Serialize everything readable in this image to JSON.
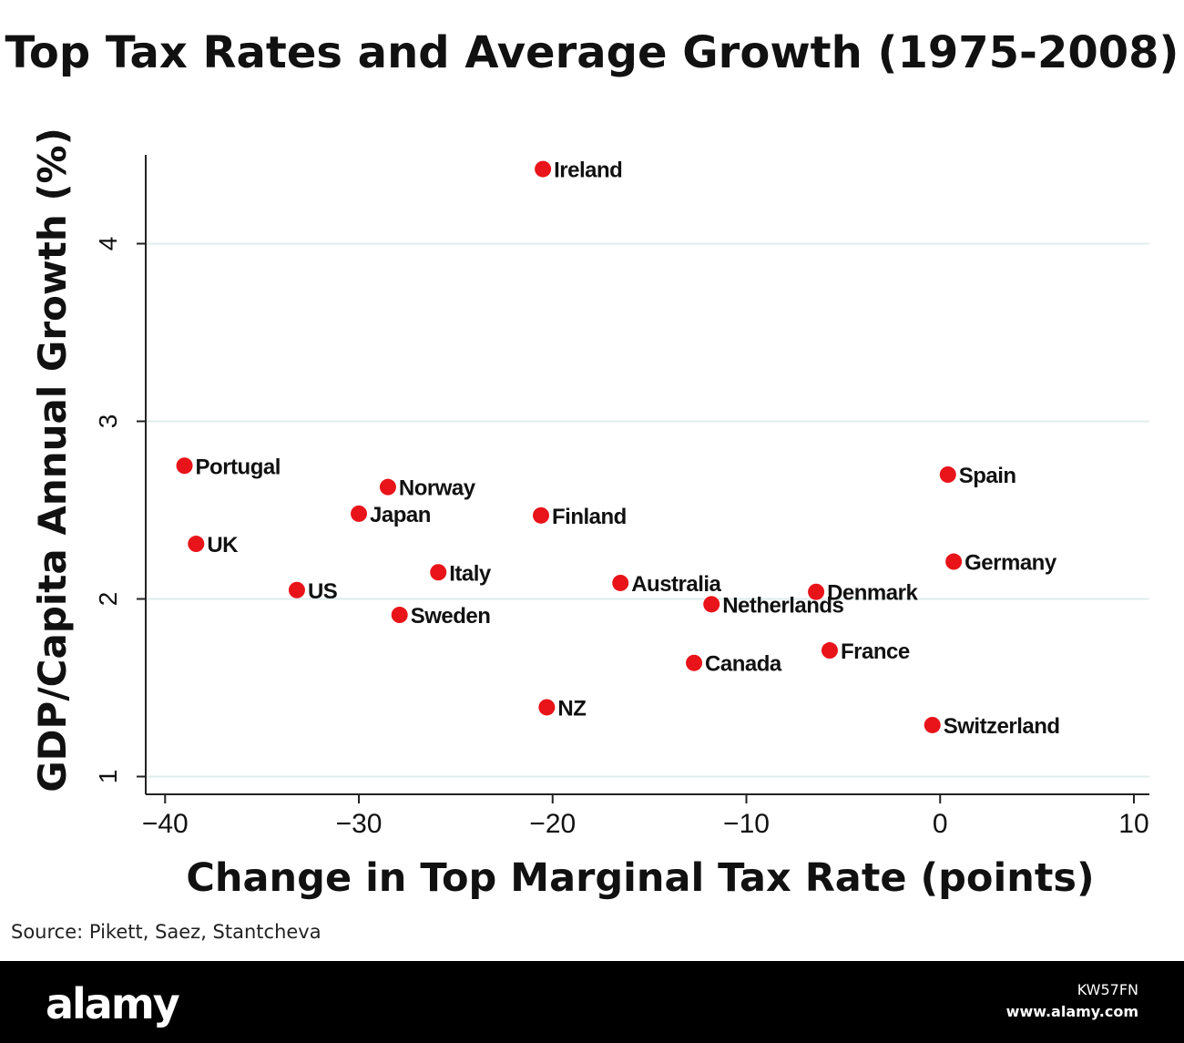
{
  "chart_data": {
    "type": "scatter",
    "title": "Top Tax Rates and Average Growth (1975-2008)",
    "xlabel": "Change in Top Marginal Tax Rate (points)",
    "ylabel": "GDP/Capita Annual Growth (%)",
    "xlim": [
      -41,
      10.8
    ],
    "ylim": [
      0.9,
      4.5
    ],
    "xticks": [
      -40,
      -30,
      -20,
      -10,
      0,
      10
    ],
    "xtick_labels": [
      "−40",
      "−30",
      "−20",
      "−10",
      "0",
      "10"
    ],
    "yticks": [
      1,
      2,
      3,
      4
    ],
    "ytick_labels": [
      "1",
      "2",
      "3",
      "4"
    ],
    "grid": "horizontal",
    "marker_color": "#e8141a",
    "grid_color": "#e0ecec",
    "points": [
      {
        "label": "Ireland",
        "x": -20.5,
        "y": 4.42
      },
      {
        "label": "Portugal",
        "x": -39.0,
        "y": 2.75
      },
      {
        "label": "Norway",
        "x": -28.5,
        "y": 2.63
      },
      {
        "label": "Japan",
        "x": -30.0,
        "y": 2.48
      },
      {
        "label": "Finland",
        "x": -20.6,
        "y": 2.47
      },
      {
        "label": "UK",
        "x": -38.4,
        "y": 2.31
      },
      {
        "label": "Italy",
        "x": -25.9,
        "y": 2.15
      },
      {
        "label": "US",
        "x": -33.2,
        "y": 2.05
      },
      {
        "label": "Sweden",
        "x": -27.9,
        "y": 1.91
      },
      {
        "label": "Australia",
        "x": -16.5,
        "y": 2.09
      },
      {
        "label": "Netherlands",
        "x": -11.8,
        "y": 1.97
      },
      {
        "label": "Denmark",
        "x": -6.4,
        "y": 2.04
      },
      {
        "label": "Canada",
        "x": -12.7,
        "y": 1.64
      },
      {
        "label": "France",
        "x": -5.7,
        "y": 1.71
      },
      {
        "label": "NZ",
        "x": -20.3,
        "y": 1.39
      },
      {
        "label": "Spain",
        "x": 0.4,
        "y": 2.7
      },
      {
        "label": "Germany",
        "x": 0.7,
        "y": 2.21
      },
      {
        "label": "Switzerland",
        "x": -0.4,
        "y": 1.29
      }
    ]
  },
  "source": "Source: Pikett, Saez, Stantcheva",
  "footer": {
    "logo": "alamy",
    "image_code": "KW57FN",
    "url": "www.alamy.com"
  }
}
